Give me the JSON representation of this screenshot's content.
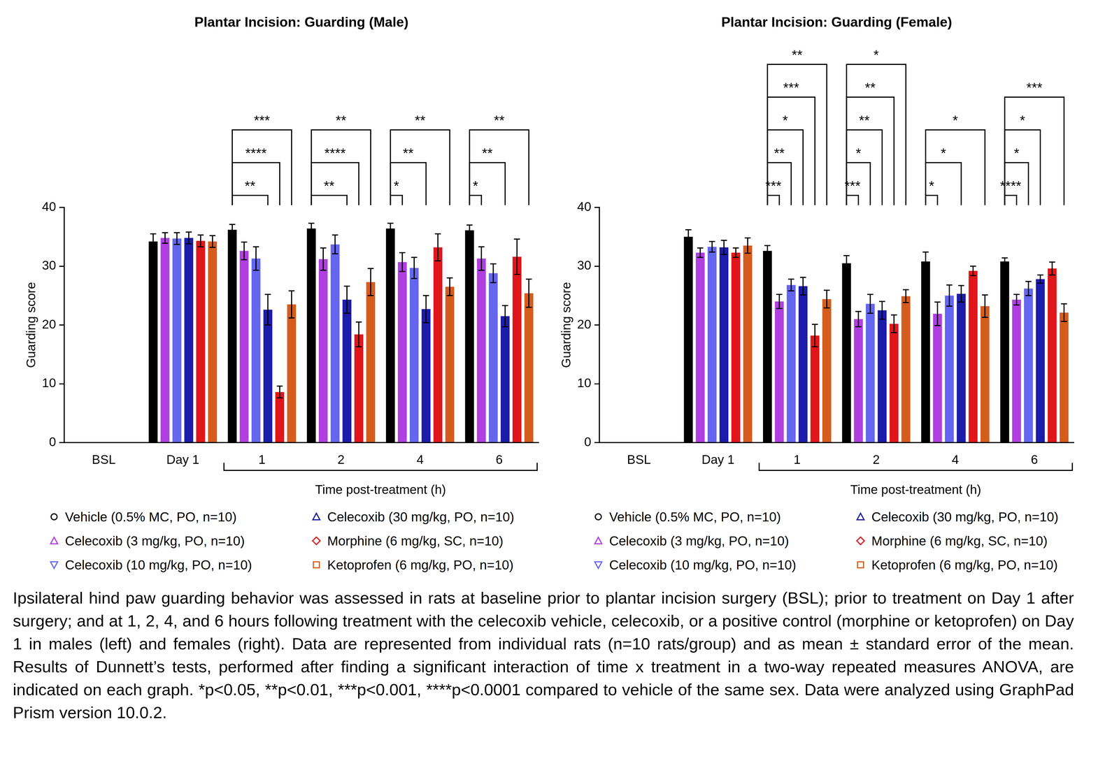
{
  "chart_data": [
    {
      "type": "bar",
      "title": "Plantar Incision: Guarding (Male)",
      "x_label": "Time post-treatment (h)",
      "y_label": "Guarding score",
      "categories": [
        "BSL",
        "Day 1",
        "1",
        "2",
        "4",
        "6"
      ],
      "ylim": [
        0,
        40
      ],
      "yticks": [
        0,
        10,
        20,
        30,
        40
      ],
      "legend": "bottom",
      "series": [
        {
          "name": "Vehicle (0.5% MC, PO, n=10)",
          "color": "#000000",
          "marker": "circle",
          "values": [
            0,
            34.2,
            36.2,
            36.4,
            36.4,
            36.1
          ],
          "errors": [
            0,
            1.3,
            0.9,
            0.9,
            0.9,
            0.9
          ]
        },
        {
          "name": "Celecoxib (3 mg/kg, PO, n=10)",
          "color": "#b03fe0",
          "marker": "triangle",
          "values": [
            0,
            34.8,
            32.6,
            31.2,
            30.7,
            31.3
          ],
          "errors": [
            0,
            0.9,
            1.5,
            1.9,
            1.6,
            2.0
          ]
        },
        {
          "name": "Celecoxib (10 mg/kg, PO, n=10)",
          "color": "#6466f0",
          "marker": "triangle-down",
          "values": [
            0,
            34.7,
            31.3,
            33.7,
            29.7,
            28.8
          ],
          "errors": [
            0,
            1.0,
            2.0,
            1.6,
            1.8,
            1.6
          ]
        },
        {
          "name": "Celecoxib (30 mg/kg, PO, n=10)",
          "color": "#1c1caa",
          "marker": "triangle",
          "values": [
            0,
            34.8,
            22.6,
            24.3,
            22.7,
            21.5
          ],
          "errors": [
            0,
            1.0,
            2.6,
            2.3,
            2.3,
            1.8
          ]
        },
        {
          "name": "Morphine (6 mg/kg, SC, n=10)",
          "color": "#e0161b",
          "marker": "diamond",
          "values": [
            0,
            34.3,
            8.6,
            18.4,
            33.2,
            31.6
          ],
          "errors": [
            0,
            1.0,
            1.0,
            2.1,
            2.3,
            3.0
          ]
        },
        {
          "name": "Ketoprofen (6 mg/kg, PO, n=10)",
          "color": "#d45d1d",
          "marker": "square",
          "values": [
            0,
            34.2,
            23.5,
            27.3,
            26.5,
            25.4
          ],
          "errors": [
            0,
            1.0,
            2.3,
            2.3,
            1.5,
            2.4
          ]
        }
      ],
      "significance": [
        {
          "category": "1",
          "series": "Celecoxib (30 mg/kg, PO, n=10)",
          "label": "**"
        },
        {
          "category": "1",
          "series": "Morphine (6 mg/kg, SC, n=10)",
          "label": "****"
        },
        {
          "category": "1",
          "series": "Ketoprofen (6 mg/kg, PO, n=10)",
          "label": "***"
        },
        {
          "category": "2",
          "series": "Celecoxib (30 mg/kg, PO, n=10)",
          "label": "**"
        },
        {
          "category": "2",
          "series": "Morphine (6 mg/kg, SC, n=10)",
          "label": "****"
        },
        {
          "category": "2",
          "series": "Ketoprofen (6 mg/kg, PO, n=10)",
          "label": "**"
        },
        {
          "category": "4",
          "series": "Celecoxib (3 mg/kg, PO, n=10)",
          "label": "*"
        },
        {
          "category": "4",
          "series": "Celecoxib (30 mg/kg, PO, n=10)",
          "label": "**"
        },
        {
          "category": "4",
          "series": "Ketoprofen (6 mg/kg, PO, n=10)",
          "label": "**"
        },
        {
          "category": "6",
          "series": "Celecoxib (3 mg/kg, PO, n=10)",
          "label": "*"
        },
        {
          "category": "6",
          "series": "Celecoxib (30 mg/kg, PO, n=10)",
          "label": "**"
        },
        {
          "category": "6",
          "series": "Ketoprofen (6 mg/kg, PO, n=10)",
          "label": "**"
        }
      ]
    },
    {
      "type": "bar",
      "title": "Plantar Incision: Guarding (Female)",
      "x_label": "Time post-treatment (h)",
      "y_label": "Guarding score",
      "categories": [
        "BSL",
        "Day 1",
        "1",
        "2",
        "4",
        "6"
      ],
      "ylim": [
        0,
        40
      ],
      "yticks": [
        0,
        10,
        20,
        30,
        40
      ],
      "legend": "bottom",
      "series": [
        {
          "name": "Vehicle (0.5% MC, PO, n=10)",
          "color": "#000000",
          "marker": "circle",
          "values": [
            0,
            35.0,
            32.6,
            30.5,
            30.8,
            30.8
          ],
          "errors": [
            0,
            1.2,
            0.9,
            1.3,
            1.6,
            0.6
          ]
        },
        {
          "name": "Celecoxib (3 mg/kg, PO, n=10)",
          "color": "#b03fe0",
          "marker": "triangle",
          "values": [
            0,
            32.3,
            24.0,
            21.0,
            21.9,
            24.3
          ],
          "errors": [
            0,
            0.8,
            1.2,
            1.3,
            2.0,
            0.9
          ]
        },
        {
          "name": "Celecoxib (10 mg/kg, PO, n=10)",
          "color": "#6466f0",
          "marker": "triangle-down",
          "values": [
            0,
            33.3,
            26.8,
            23.6,
            25.0,
            26.2
          ],
          "errors": [
            0,
            0.9,
            1.0,
            1.6,
            1.8,
            1.2
          ]
        },
        {
          "name": "Celecoxib (30 mg/kg, PO, n=10)",
          "color": "#1c1caa",
          "marker": "triangle",
          "values": [
            0,
            33.2,
            26.6,
            22.5,
            25.3,
            27.8
          ],
          "errors": [
            0,
            1.2,
            1.5,
            1.5,
            1.4,
            0.7
          ]
        },
        {
          "name": "Morphine (6 mg/kg, SC, n=10)",
          "color": "#e0161b",
          "marker": "diamond",
          "values": [
            0,
            32.3,
            18.2,
            20.2,
            29.2,
            29.6
          ],
          "errors": [
            0,
            0.8,
            1.9,
            1.5,
            0.8,
            1.1
          ]
        },
        {
          "name": "Ketoprofen (6 mg/kg, PO, n=10)",
          "color": "#d45d1d",
          "marker": "square",
          "values": [
            0,
            33.5,
            24.4,
            24.9,
            23.2,
            22.1
          ],
          "errors": [
            0,
            1.3,
            1.5,
            1.1,
            1.9,
            1.5
          ]
        }
      ],
      "significance": [
        {
          "category": "1",
          "series": "Celecoxib (3 mg/kg, PO, n=10)",
          "label": "***"
        },
        {
          "category": "1",
          "series": "Celecoxib (10 mg/kg, PO, n=10)",
          "label": "**"
        },
        {
          "category": "1",
          "series": "Celecoxib (30 mg/kg, PO, n=10)",
          "label": "*"
        },
        {
          "category": "1",
          "series": "Morphine (6 mg/kg, SC, n=10)",
          "label": "***"
        },
        {
          "category": "1",
          "series": "Ketoprofen (6 mg/kg, PO, n=10)",
          "label": "**"
        },
        {
          "category": "2",
          "series": "Celecoxib (3 mg/kg, PO, n=10)",
          "label": "***"
        },
        {
          "category": "2",
          "series": "Celecoxib (10 mg/kg, PO, n=10)",
          "label": "*"
        },
        {
          "category": "2",
          "series": "Celecoxib (30 mg/kg, PO, n=10)",
          "label": "**"
        },
        {
          "category": "2",
          "series": "Morphine (6 mg/kg, SC, n=10)",
          "label": "**"
        },
        {
          "category": "2",
          "series": "Ketoprofen (6 mg/kg, PO, n=10)",
          "label": "*"
        },
        {
          "category": "4",
          "series": "Celecoxib (3 mg/kg, PO, n=10)",
          "label": "*"
        },
        {
          "category": "4",
          "series": "Celecoxib (30 mg/kg, PO, n=10)",
          "label": "*"
        },
        {
          "category": "4",
          "series": "Ketoprofen (6 mg/kg, PO, n=10)",
          "label": "*"
        },
        {
          "category": "6",
          "series": "Celecoxib (3 mg/kg, PO, n=10)",
          "label": "****"
        },
        {
          "category": "6",
          "series": "Celecoxib (10 mg/kg, PO, n=10)",
          "label": "*"
        },
        {
          "category": "6",
          "series": "Celecoxib (30 mg/kg, PO, n=10)",
          "label": "*"
        },
        {
          "category": "6",
          "series": "Ketoprofen (6 mg/kg, PO, n=10)",
          "label": "***"
        }
      ]
    }
  ],
  "caption": "Ipsilateral hind paw guarding behavior was assessed in rats at baseline prior to plantar incision surgery (BSL); prior to treatment on Day 1 after surgery; and at 1, 2, 4, and 6 hours following treatment with the celecoxib vehicle, celecoxib, or a positive control (morphine or ketoprofen) on Day 1 in males (left) and females (right). Data are represented from individual rats (n=10 rats/group) and as mean ± standard error of the mean. Results of Dunnett’s tests, performed after finding a significant interaction of time x treatment in a two-way repeated measures ANOVA, are indicated on each graph. *p<0.05, **p<0.01, ***p<0.001, ****p<0.0001 compared to vehicle of the same sex. Data were analyzed using GraphPad Prism version 10.0.2."
}
